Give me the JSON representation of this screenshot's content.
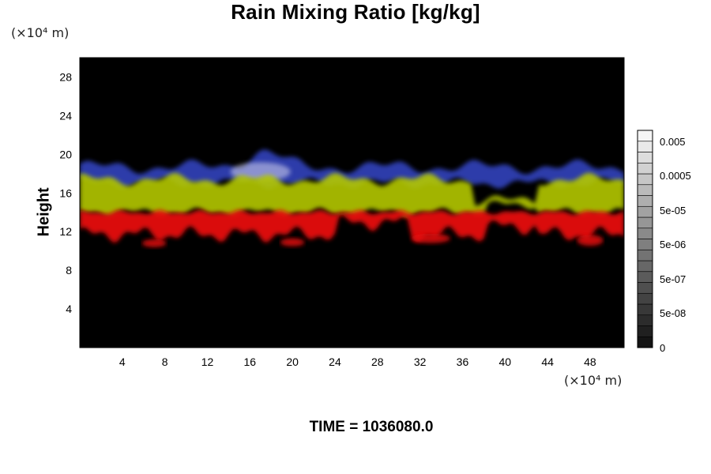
{
  "chart_data": {
    "type": "heatmap",
    "title": "Rain Mixing Ratio [kg/kg]",
    "ylabel": "Height",
    "xlabel": "",
    "x_unit": "(×10⁴ m)",
    "y_unit": "(×10⁴ m)",
    "xlim": [
      0,
      51.2
    ],
    "ylim": [
      0,
      30
    ],
    "x_ticks": [
      "4",
      "8",
      "12",
      "16",
      "20",
      "24",
      "28",
      "32",
      "36",
      "40",
      "44",
      "48"
    ],
    "y_ticks": [
      "4",
      "8",
      "12",
      "16",
      "20",
      "24",
      "28"
    ],
    "colorbar": {
      "labels": [
        "0.005",
        "0.0005",
        "5e-05",
        "5e-06",
        "5e-07",
        "5e-08",
        "0"
      ],
      "levels": 20
    },
    "layers": [
      {
        "color": "blue",
        "bottom": 17,
        "top": 20
      },
      {
        "color": "yellow",
        "bottom": 14,
        "top": 18
      },
      {
        "color": "red",
        "bottom": 10.5,
        "top": 14
      }
    ],
    "colors": {
      "background": "#000000",
      "blue": "#3446c8",
      "yellow": "#b4c800",
      "red": "#e61010"
    }
  },
  "footer": {
    "time_label": "TIME = 1036080.0"
  }
}
